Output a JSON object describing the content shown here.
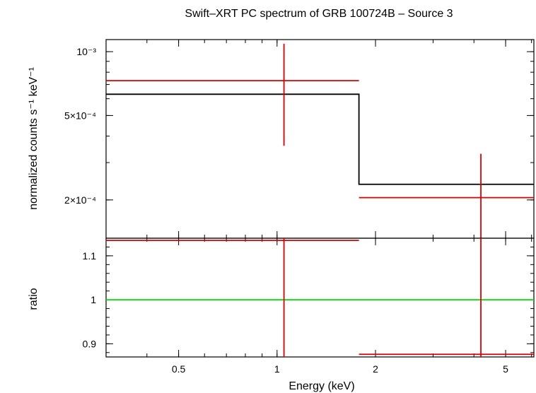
{
  "chart_data": {
    "type": "scatter",
    "title": "Swift–XRT PC spectrum of GRB 100724B – Source 3",
    "xlabel": "Energy (keV)",
    "x_scale": "log",
    "xlim": [
      0.3,
      6.1
    ],
    "x_ticks": [
      {
        "value": 0.5,
        "label": "0.5"
      },
      {
        "value": 1,
        "label": "1"
      },
      {
        "value": 2,
        "label": "2"
      },
      {
        "value": 5,
        "label": "5"
      }
    ],
    "panels": [
      {
        "id": "spectrum",
        "ylabel": "normalized counts s⁻¹ keV⁻¹",
        "y_scale": "log",
        "ylim": [
          0.000132,
          0.00114
        ],
        "y_ticks": [
          {
            "value": 0.001,
            "label": "10⁻³"
          },
          {
            "value": 0.0005,
            "label": "5×10⁻⁴"
          },
          {
            "value": 0.0002,
            "label": "2×10⁻⁴"
          }
        ],
        "data": {
          "name": "",
          "color": "#dd0000",
          "points": [
            {
              "x": 1.05,
              "x_lo": 0.3,
              "x_hi": 1.78,
              "y": 0.00073,
              "y_lo": 0.00036,
              "y_hi": 0.00109
            },
            {
              "x": 4.2,
              "x_lo": 1.78,
              "x_hi": 6.1,
              "y": 0.000205,
              "y_lo": 0.000132,
              "y_hi": 0.00033
            }
          ]
        },
        "model": {
          "name": "",
          "color": "#000000",
          "steps": [
            {
              "x_lo": 0.3,
              "x_hi": 1.78,
              "y": 0.00063
            },
            {
              "x_lo": 1.78,
              "x_hi": 6.1,
              "y": 0.000237
            }
          ]
        }
      },
      {
        "id": "ratio",
        "ylabel": "ratio",
        "y_scale": "linear",
        "ylim": [
          0.87,
          1.14
        ],
        "y_ticks": [
          {
            "value": 1.1,
            "label": "1.1"
          },
          {
            "value": 1,
            "label": "1"
          },
          {
            "value": 0.9,
            "label": "0.9"
          }
        ],
        "reference_line": {
          "y": 1,
          "color": "#00dd00"
        },
        "data": {
          "name": "",
          "color": "#dd0000",
          "points": [
            {
              "x": 1.05,
              "x_lo": 0.3,
              "x_hi": 1.78,
              "y": 1.135,
              "y_lo": 0.87,
              "y_hi": 1.14
            },
            {
              "x": 4.2,
              "x_lo": 1.78,
              "x_hi": 6.1,
              "y": 0.876,
              "y_lo": 0.87,
              "y_hi": 1.14
            }
          ]
        }
      }
    ]
  }
}
